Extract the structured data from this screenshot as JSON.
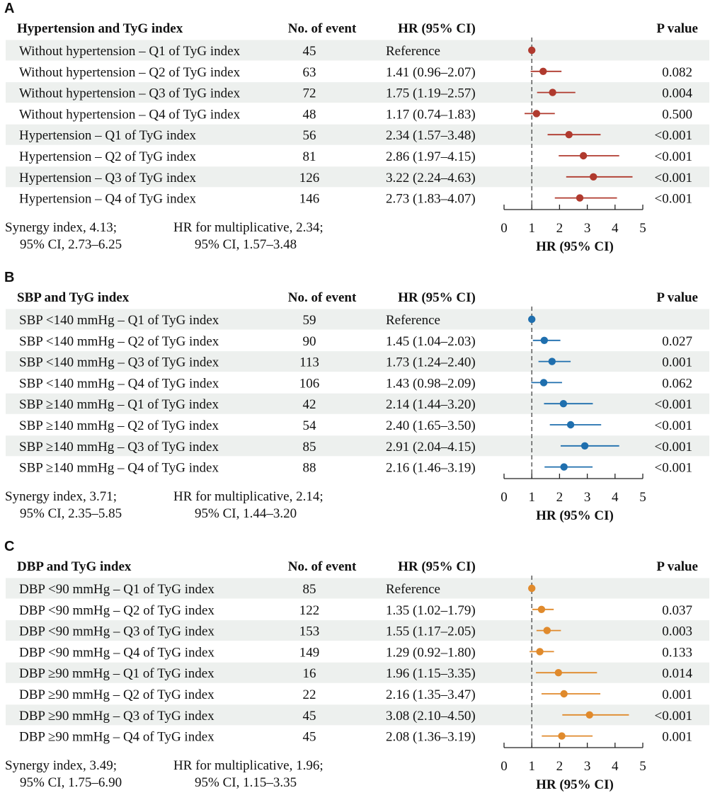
{
  "colors": {
    "band": "#edf0ee",
    "panel_A": "#b03a2e",
    "panel_B": "#1f6fae",
    "panel_C": "#e08a2c",
    "axis": "#222222",
    "reference_line": "#444444"
  },
  "column_headers": {
    "events": "No. of event",
    "hr": "HR (95% CI)",
    "p": "P value"
  },
  "axis_label": "HR (95% CI)",
  "chart_data": [
    {
      "type": "forest",
      "panel": "A",
      "title": "Hypertension and TyG index",
      "xlim": [
        0,
        5
      ],
      "xticks": [
        "0",
        "1",
        "2",
        "3",
        "4",
        "5"
      ],
      "reference_value": 1,
      "rows": [
        {
          "label": "Without hypertension – Q1 of TyG index",
          "events": "45",
          "hr_text": "Reference",
          "p": "",
          "hr": 1.0,
          "lo": null,
          "hi": null
        },
        {
          "label": "Without hypertension – Q2 of TyG index",
          "events": "63",
          "hr_text": "1.41 (0.96–2.07)",
          "p": "0.082",
          "hr": 1.41,
          "lo": 0.96,
          "hi": 2.07
        },
        {
          "label": "Without hypertension – Q3 of TyG index",
          "events": "72",
          "hr_text": "1.75 (1.19–2.57)",
          "p": "0.004",
          "hr": 1.75,
          "lo": 1.19,
          "hi": 2.57
        },
        {
          "label": "Without hypertension – Q4 of TyG index",
          "events": "48",
          "hr_text": "1.17 (0.74–1.83)",
          "p": "0.500",
          "hr": 1.17,
          "lo": 0.74,
          "hi": 1.83
        },
        {
          "label": "Hypertension – Q1 of TyG index",
          "events": "56",
          "hr_text": "2.34 (1.57–3.48)",
          "p": "<0.001",
          "hr": 2.34,
          "lo": 1.57,
          "hi": 3.48
        },
        {
          "label": "Hypertension – Q2 of TyG index",
          "events": "81",
          "hr_text": "2.86 (1.97–4.15)",
          "p": "<0.001",
          "hr": 2.86,
          "lo": 1.97,
          "hi": 4.15
        },
        {
          "label": "Hypertension – Q3 of TyG index",
          "events": "126",
          "hr_text": "3.22 (2.24–4.63)",
          "p": "<0.001",
          "hr": 3.22,
          "lo": 2.24,
          "hi": 4.63
        },
        {
          "label": "Hypertension – Q4 of TyG index",
          "events": "146",
          "hr_text": "2.73 (1.83–4.07)",
          "p": "<0.001",
          "hr": 2.73,
          "lo": 1.83,
          "hi": 4.07
        }
      ],
      "synergy": [
        "Synergy index, 4.13;",
        "95% CI, 2.73–6.25"
      ],
      "multiplicative": [
        "HR for multiplicative, 2.34;",
        "95% CI, 1.57–3.48"
      ]
    },
    {
      "type": "forest",
      "panel": "B",
      "title": "SBP and TyG index",
      "xlim": [
        0,
        5
      ],
      "xticks": [
        "0",
        "1",
        "2",
        "3",
        "4",
        "5"
      ],
      "reference_value": 1,
      "rows": [
        {
          "label": "SBP <140 mmHg – Q1 of TyG index",
          "events": "59",
          "hr_text": "Reference",
          "p": "",
          "hr": 1.0,
          "lo": null,
          "hi": null
        },
        {
          "label": "SBP <140 mmHg – Q2 of TyG index",
          "events": "90",
          "hr_text": "1.45 (1.04–2.03)",
          "p": "0.027",
          "hr": 1.45,
          "lo": 1.04,
          "hi": 2.03
        },
        {
          "label": "SBP <140 mmHg – Q3 of TyG index",
          "events": "113",
          "hr_text": "1.73 (1.24–2.40)",
          "p": "0.001",
          "hr": 1.73,
          "lo": 1.24,
          "hi": 2.4
        },
        {
          "label": "SBP <140 mmHg – Q4 of TyG index",
          "events": "106",
          "hr_text": "1.43 (0.98–2.09)",
          "p": "0.062",
          "hr": 1.43,
          "lo": 0.98,
          "hi": 2.09
        },
        {
          "label": "SBP ≥140 mmHg – Q1 of TyG index",
          "events": "42",
          "hr_text": "2.14 (1.44–3.20)",
          "p": "<0.001",
          "hr": 2.14,
          "lo": 1.44,
          "hi": 3.2
        },
        {
          "label": "SBP ≥140 mmHg – Q2 of TyG index",
          "events": "54",
          "hr_text": "2.40 (1.65–3.50)",
          "p": "<0.001",
          "hr": 2.4,
          "lo": 1.65,
          "hi": 3.5
        },
        {
          "label": "SBP ≥140 mmHg – Q3 of TyG index",
          "events": "85",
          "hr_text": "2.91 (2.04–4.15)",
          "p": "<0.001",
          "hr": 2.91,
          "lo": 2.04,
          "hi": 4.15
        },
        {
          "label": "SBP ≥140 mmHg – Q4 of TyG index",
          "events": "88",
          "hr_text": "2.16 (1.46–3.19)",
          "p": "<0.001",
          "hr": 2.16,
          "lo": 1.46,
          "hi": 3.19
        }
      ],
      "synergy": [
        "Synergy index, 3.71;",
        "95% CI, 2.35–5.85"
      ],
      "multiplicative": [
        "HR for multiplicative, 2.14;",
        "95% CI, 1.44–3.20"
      ]
    },
    {
      "type": "forest",
      "panel": "C",
      "title": "DBP and TyG index",
      "xlim": [
        0,
        5
      ],
      "xticks": [
        "0",
        "1",
        "2",
        "3",
        "4",
        "5"
      ],
      "reference_value": 1,
      "rows": [
        {
          "label": "DBP <90 mmHg – Q1 of TyG index",
          "events": "85",
          "hr_text": "Reference",
          "p": "",
          "hr": 1.0,
          "lo": null,
          "hi": null
        },
        {
          "label": "DBP <90 mmHg – Q2 of TyG index",
          "events": "122",
          "hr_text": "1.35 (1.02–1.79)",
          "p": "0.037",
          "hr": 1.35,
          "lo": 1.02,
          "hi": 1.79
        },
        {
          "label": "DBP <90 mmHg – Q3 of TyG index",
          "events": "153",
          "hr_text": "1.55 (1.17–2.05)",
          "p": "0.003",
          "hr": 1.55,
          "lo": 1.17,
          "hi": 2.05
        },
        {
          "label": "DBP <90 mmHg – Q4 of TyG index",
          "events": "149",
          "hr_text": "1.29 (0.92–1.80)",
          "p": "0.133",
          "hr": 1.29,
          "lo": 0.92,
          "hi": 1.8
        },
        {
          "label": "DBP ≥90 mmHg – Q1 of TyG index",
          "events": "16",
          "hr_text": "1.96 (1.15–3.35)",
          "p": "0.014",
          "hr": 1.96,
          "lo": 1.15,
          "hi": 3.35
        },
        {
          "label": "DBP ≥90 mmHg – Q2 of TyG index",
          "events": "22",
          "hr_text": "2.16 (1.35–3.47)",
          "p": "0.001",
          "hr": 2.16,
          "lo": 1.35,
          "hi": 3.47
        },
        {
          "label": "DBP ≥90 mmHg – Q3 of TyG index",
          "events": "45",
          "hr_text": "3.08 (2.10–4.50)",
          "p": "<0.001",
          "hr": 3.08,
          "lo": 2.1,
          "hi": 4.5
        },
        {
          "label": "DBP ≥90 mmHg – Q4 of TyG index",
          "events": "45",
          "hr_text": "2.08 (1.36–3.19)",
          "p": "0.001",
          "hr": 2.08,
          "lo": 1.36,
          "hi": 3.19
        }
      ],
      "synergy": [
        "Synergy index, 3.49;",
        "95% CI, 1.75–6.90"
      ],
      "multiplicative": [
        "HR for multiplicative, 1.96;",
        "95% CI, 1.15–3.35"
      ]
    }
  ]
}
